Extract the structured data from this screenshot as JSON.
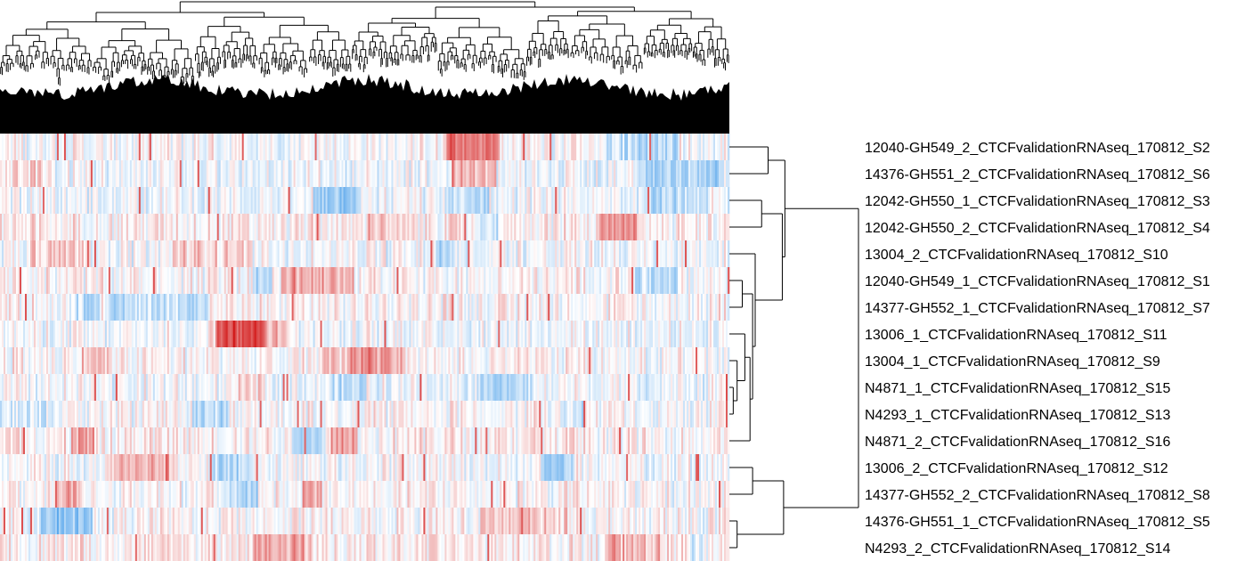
{
  "chart_data": {
    "type": "heatmap",
    "title": "",
    "xlabel": "",
    "ylabel": "",
    "colors": {
      "low": "#2d8fe6",
      "mid": "#ffffff",
      "high": "#d01010",
      "dendrogram": "#000000"
    },
    "column_dendrogram": true,
    "row_dendrogram": true,
    "row_labels": [
      "12040-GH549_2_CTCFvalidationRNAseq_170812_S2",
      "14376-GH551_2_CTCFvalidationRNAseq_170812_S6",
      "12042-GH550_1_CTCFvalidationRNAseq_170812_S3",
      "12042-GH550_2_CTCFvalidationRNAseq_170812_S4",
      "13004_2_CTCFvalidationRNAseq_170812_S10",
      "12040-GH549_1_CTCFvalidationRNAseq_170812_S1",
      "14377-GH552_1_CTCFvalidationRNAseq_170812_S7",
      "13006_1_CTCFvalidationRNAseq_170812_S11",
      "13004_1_CTCFvalidationRNAseq_170812_S9",
      "N4871_1_CTCFvalidationRNAseq_170812_S15",
      "N4293_1_CTCFvalidationRNAseq_170812_S13",
      "N4871_2_CTCFvalidationRNAseq_170812_S16",
      "13006_2_CTCFvalidationRNAseq_170812_S12",
      "14377-GH552_2_CTCFvalidationRNAseq_170812_S8",
      "14376-GH551_1_CTCFvalidationRNAseq_170812_S5",
      "N4293_2_CTCFvalidationRNAseq_170812_S14"
    ],
    "row_dendrogram_merges": [
      {
        "a": 0,
        "b": 1,
        "height": 0.3
      },
      {
        "a": 2,
        "b": 3,
        "height": 0.25
      },
      {
        "a": 5,
        "b": 6,
        "height": 0.1
      },
      {
        "a": 9,
        "b": 10,
        "height": 0.03
      },
      {
        "a": 8,
        "b": "m3",
        "height": 0.06
      },
      {
        "a": 7,
        "b": "m4",
        "height": 0.12
      },
      {
        "a": "m5",
        "b": 11,
        "height": 0.16
      },
      {
        "a": "m2",
        "b": "m6",
        "height": 0.18
      },
      {
        "a": 4,
        "b": "m7",
        "height": 0.2
      },
      {
        "a": 12,
        "b": 13,
        "height": 0.18
      },
      {
        "a": 14,
        "b": 15,
        "height": 0.06
      },
      {
        "a": "m1",
        "b": "m8",
        "height": 0.41
      },
      {
        "a": "m9",
        "b": "m10",
        "height": 0.42
      },
      {
        "a": "m0",
        "b": "m11",
        "height": 0.43
      },
      {
        "a": "m12",
        "b": "m13",
        "height": 1.0
      }
    ]
  }
}
